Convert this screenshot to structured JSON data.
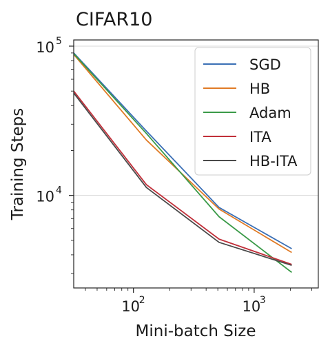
{
  "chart_data": {
    "type": "line",
    "title": "CIFAR10",
    "xlabel": "Mini-batch Size",
    "ylabel": "Training Steps",
    "xscale": "log",
    "yscale": "log",
    "xlim": [
      32,
      3400
    ],
    "ylim": [
      2400,
      110000
    ],
    "grid": "horizontal major only",
    "legend_position": "top-right",
    "x": [
      32,
      128,
      512,
      2048
    ],
    "x_ticks": [
      {
        "value": 100,
        "base": "10",
        "exp": "2"
      },
      {
        "value": 1000,
        "base": "10",
        "exp": "3"
      }
    ],
    "y_ticks": [
      {
        "value": 10000,
        "base": "10",
        "exp": "4"
      },
      {
        "value": 100000,
        "base": "10",
        "exp": "5"
      }
    ],
    "series": [
      {
        "name": "SGD",
        "color": "#3a6fb5",
        "values": [
          90000,
          27000,
          8300,
          4400
        ]
      },
      {
        "name": "HB",
        "color": "#e07a24",
        "values": [
          88000,
          23500,
          8100,
          4150
        ]
      },
      {
        "name": "Adam",
        "color": "#3a9a48",
        "values": [
          89000,
          26000,
          7200,
          3050
        ]
      },
      {
        "name": "ITA",
        "color": "#c1303a",
        "values": [
          50000,
          11800,
          5100,
          3450
        ]
      },
      {
        "name": "HB-ITA",
        "color": "#4a4a4a",
        "values": [
          48500,
          11300,
          4850,
          3400
        ]
      }
    ]
  }
}
